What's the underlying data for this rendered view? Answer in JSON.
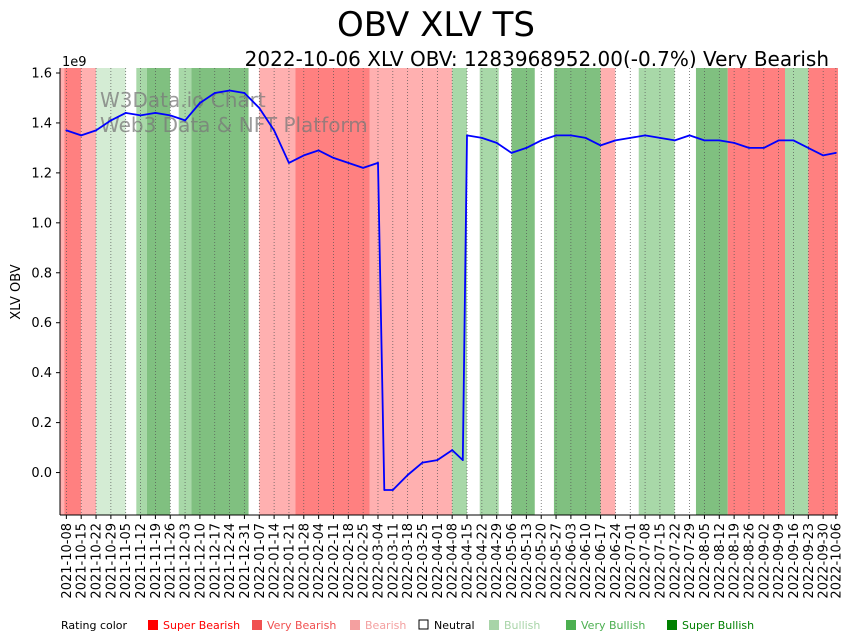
{
  "chart_data": {
    "type": "line",
    "title": "OBV XLV TS",
    "subtitle": "2022-10-06 XLV OBV: 1283968952.00(-0.7%) Very Bearish",
    "ylabel": "XLV OBV",
    "xlabel": "",
    "y_scale_label": "1e9",
    "ylim": [
      -0.17,
      1.62
    ],
    "y_ticks": [
      "0.0",
      "0.2",
      "0.4",
      "0.6",
      "0.8",
      "1.0",
      "1.2",
      "1.4",
      "1.6"
    ],
    "y_tick_values": [
      0.0,
      0.2,
      0.4,
      0.6,
      0.8,
      1.0,
      1.2,
      1.4,
      1.6
    ],
    "x_ticks": [
      "2021-10-08",
      "2021-10-15",
      "2021-10-22",
      "2021-10-29",
      "2021-11-05",
      "2021-11-12",
      "2021-11-19",
      "2021-11-26",
      "2021-12-03",
      "2021-12-10",
      "2021-12-17",
      "2021-12-24",
      "2021-12-31",
      "2022-01-07",
      "2022-01-14",
      "2022-01-21",
      "2022-01-28",
      "2022-02-04",
      "2022-02-11",
      "2022-02-18",
      "2022-02-25",
      "2022-03-04",
      "2022-03-11",
      "2022-03-18",
      "2022-03-25",
      "2022-04-01",
      "2022-04-08",
      "2022-04-15",
      "2022-04-22",
      "2022-04-29",
      "2022-05-06",
      "2022-05-13",
      "2022-05-20",
      "2022-05-27",
      "2022-06-03",
      "2022-06-10",
      "2022-06-17",
      "2022-06-24",
      "2022-07-01",
      "2022-07-08",
      "2022-07-15",
      "2022-07-22",
      "2022-07-29",
      "2022-08-05",
      "2022-08-12",
      "2022-08-19",
      "2022-08-26",
      "2022-09-02",
      "2022-09-09",
      "2022-09-16",
      "2022-09-23",
      "2022-09-30",
      "2022-10-06"
    ],
    "watermark": [
      "W3Data.io Chart",
      "Web3 Data & NFT Platform"
    ],
    "grid": "vertical dotted at each x tick",
    "series": [
      {
        "name": "XLV OBV",
        "color": "#0000ff",
        "x": [
          "2021-10-08",
          "2021-10-15",
          "2021-10-22",
          "2021-10-29",
          "2021-11-05",
          "2021-11-12",
          "2021-11-19",
          "2021-11-26",
          "2021-12-03",
          "2021-12-10",
          "2021-12-17",
          "2021-12-24",
          "2021-12-31",
          "2022-01-07",
          "2022-01-14",
          "2022-01-21",
          "2022-01-28",
          "2022-02-04",
          "2022-02-11",
          "2022-02-18",
          "2022-02-25",
          "2022-03-04",
          "2022-03-07",
          "2022-03-11",
          "2022-03-18",
          "2022-03-25",
          "2022-04-01",
          "2022-04-08",
          "2022-04-13",
          "2022-04-15",
          "2022-04-22",
          "2022-04-29",
          "2022-05-06",
          "2022-05-13",
          "2022-05-20",
          "2022-05-27",
          "2022-06-03",
          "2022-06-10",
          "2022-06-17",
          "2022-06-24",
          "2022-07-01",
          "2022-07-08",
          "2022-07-15",
          "2022-07-22",
          "2022-07-29",
          "2022-08-05",
          "2022-08-12",
          "2022-08-19",
          "2022-08-26",
          "2022-09-02",
          "2022-09-09",
          "2022-09-16",
          "2022-09-23",
          "2022-09-30",
          "2022-10-06"
        ],
        "values": [
          1.37,
          1.35,
          1.37,
          1.41,
          1.44,
          1.43,
          1.44,
          1.43,
          1.41,
          1.48,
          1.52,
          1.53,
          1.52,
          1.46,
          1.37,
          1.24,
          1.27,
          1.29,
          1.26,
          1.24,
          1.22,
          1.24,
          -0.07,
          -0.07,
          -0.01,
          0.04,
          0.05,
          0.09,
          0.05,
          1.35,
          1.34,
          1.32,
          1.28,
          1.3,
          1.33,
          1.35,
          1.35,
          1.34,
          1.31,
          1.33,
          1.34,
          1.35,
          1.34,
          1.33,
          1.35,
          1.33,
          1.33,
          1.32,
          1.3,
          1.3,
          1.33,
          1.33,
          1.3,
          1.27,
          1.28
        ]
      }
    ],
    "rating_bands": [
      {
        "start": "2021-10-05",
        "end": "2021-10-07",
        "rating": "Bearish"
      },
      {
        "start": "2021-10-07",
        "end": "2021-10-15",
        "rating": "Very Bearish"
      },
      {
        "start": "2021-10-15",
        "end": "2021-10-22",
        "rating": "Bearish"
      },
      {
        "start": "2021-10-22",
        "end": "2021-11-05",
        "rating": "Neutral-Bullish"
      },
      {
        "start": "2021-11-05",
        "end": "2021-11-10",
        "rating": "Neutral"
      },
      {
        "start": "2021-11-10",
        "end": "2021-11-15",
        "rating": "Bullish"
      },
      {
        "start": "2021-11-15",
        "end": "2021-11-26",
        "rating": "Very Bullish"
      },
      {
        "start": "2021-11-26",
        "end": "2021-11-30",
        "rating": "Neutral"
      },
      {
        "start": "2021-11-30",
        "end": "2021-12-06",
        "rating": "Bullish"
      },
      {
        "start": "2021-12-06",
        "end": "2022-01-02",
        "rating": "Very Bullish"
      },
      {
        "start": "2022-01-02",
        "end": "2022-01-07",
        "rating": "Neutral"
      },
      {
        "start": "2022-01-07",
        "end": "2022-01-24",
        "rating": "Bearish"
      },
      {
        "start": "2022-01-24",
        "end": "2022-02-28",
        "rating": "Very Bearish"
      },
      {
        "start": "2022-02-28",
        "end": "2022-04-08",
        "rating": "Bearish"
      },
      {
        "start": "2022-04-08",
        "end": "2022-04-15",
        "rating": "Bullish"
      },
      {
        "start": "2022-04-15",
        "end": "2022-04-21",
        "rating": "Neutral"
      },
      {
        "start": "2022-04-21",
        "end": "2022-04-30",
        "rating": "Bullish"
      },
      {
        "start": "2022-04-30",
        "end": "2022-05-06",
        "rating": "Neutral"
      },
      {
        "start": "2022-05-06",
        "end": "2022-05-17",
        "rating": "Very Bullish"
      },
      {
        "start": "2022-05-17",
        "end": "2022-05-26",
        "rating": "Neutral"
      },
      {
        "start": "2022-05-26",
        "end": "2022-06-17",
        "rating": "Very Bullish"
      },
      {
        "start": "2022-06-17",
        "end": "2022-06-24",
        "rating": "Bearish"
      },
      {
        "start": "2022-06-24",
        "end": "2022-07-05",
        "rating": "Neutral"
      },
      {
        "start": "2022-07-05",
        "end": "2022-07-22",
        "rating": "Bullish"
      },
      {
        "start": "2022-07-22",
        "end": "2022-08-01",
        "rating": "Neutral"
      },
      {
        "start": "2022-08-01",
        "end": "2022-08-16",
        "rating": "Very Bullish"
      },
      {
        "start": "2022-08-16",
        "end": "2022-09-12",
        "rating": "Very Bearish"
      },
      {
        "start": "2022-09-12",
        "end": "2022-09-23",
        "rating": "Bullish"
      },
      {
        "start": "2022-09-23",
        "end": "2022-10-07",
        "rating": "Very Bearish"
      }
    ],
    "legend": {
      "placement": "bottom",
      "label": "Rating color",
      "items": [
        {
          "name": "Super Bearish",
          "color": "#ff0000"
        },
        {
          "name": "Very Bearish",
          "color": "#f05050"
        },
        {
          "name": "Bearish",
          "color": "#f4a0a0"
        },
        {
          "name": "Neutral",
          "color": "#000000"
        },
        {
          "name": "Bullish",
          "color": "#a8d4a8"
        },
        {
          "name": "Very Bullish",
          "color": "#4caf50"
        },
        {
          "name": "Super Bullish",
          "color": "#008000"
        }
      ]
    },
    "band_colors": {
      "Very Bearish": "#ff8080",
      "Bearish": "#ffb0b0",
      "Neutral": "#ffffff",
      "Neutral-Bullish": "#d4ecd4",
      "Bullish": "#a8d8a8",
      "Very Bullish": "#80c080"
    }
  }
}
